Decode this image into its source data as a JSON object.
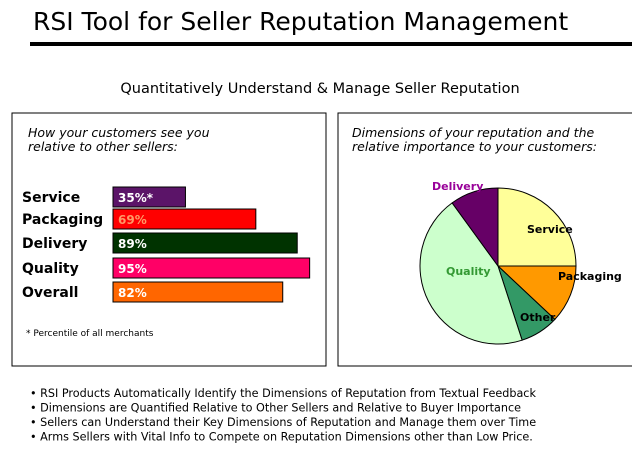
{
  "title": "RSI Tool for Seller Reputation Management",
  "subtitle": "Quantitatively Understand & Manage Seller Reputation",
  "chart_data": [
    {
      "type": "bar",
      "orientation": "horizontal",
      "caption": [
        "How your customers see you",
        "relative to other sellers:"
      ],
      "categories": [
        "Service",
        "Packaging",
        "Delivery",
        "Quality",
        "Overall"
      ],
      "values": [
        35,
        69,
        89,
        95,
        82
      ],
      "value_labels": [
        "35%*",
        "69%",
        "89%",
        "95%",
        "82%"
      ],
      "colors": [
        "#5b1468",
        "#ff0000",
        "#003300",
        "#ff0066",
        "#ff6600"
      ],
      "xlim": [
        0,
        100
      ],
      "footnote": "* Percentile of all merchants"
    },
    {
      "type": "pie",
      "caption": [
        "Dimensions of your reputation and the",
        "relative importance to your customers:"
      ],
      "categories": [
        "Service",
        "Packaging",
        "Other",
        "Quality",
        "Delivery"
      ],
      "values": [
        25,
        12,
        8,
        45,
        10
      ],
      "colors": [
        "#ffff99",
        "#ff9900",
        "#339966",
        "#ccffcc",
        "#660066"
      ],
      "label_colors": [
        "#000000",
        "#000000",
        "#000000",
        "#339933",
        "#990099"
      ]
    }
  ],
  "bullets": [
    "• RSI Products Automatically Identify the Dimensions of Reputation from Textual Feedback",
    "• Dimensions are Quantified Relative to Other Sellers and Relative to Buyer Importance",
    "• Sellers can Understand their Key Dimensions of Reputation and Manage them over Time",
    "• Arms Sellers with Vital Info to Compete on Reputation Dimensions other than Low Price."
  ]
}
